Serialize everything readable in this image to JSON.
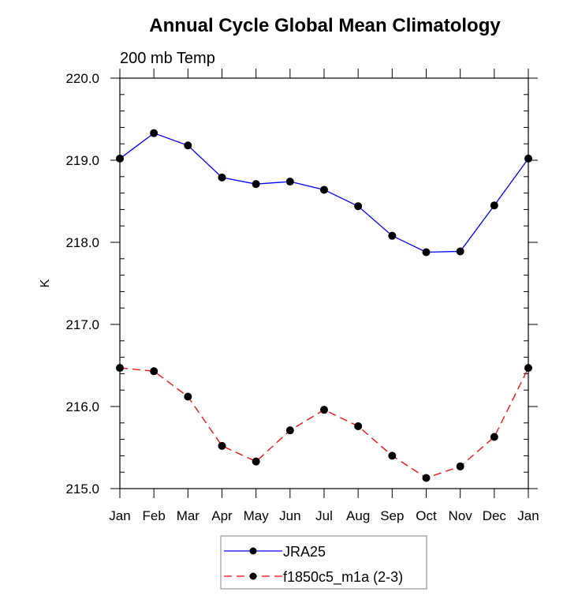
{
  "chart_data": {
    "type": "line",
    "title": "Annual Cycle Global Mean Climatology",
    "subtitle": "200 mb Temp",
    "xlabel": "",
    "ylabel": "K",
    "categories": [
      "Jan",
      "Feb",
      "Mar",
      "Apr",
      "May",
      "Jun",
      "Jul",
      "Aug",
      "Sep",
      "Oct",
      "Nov",
      "Dec",
      "Jan"
    ],
    "ylim": [
      215.0,
      220.0
    ],
    "yticks": [
      "215.0",
      "216.0",
      "217.0",
      "218.0",
      "219.0",
      "220.0"
    ],
    "ytick_values": [
      215,
      216,
      217,
      218,
      219,
      220
    ],
    "y_minor_step": 0.2,
    "grid": false,
    "legend_position": "bottom-center",
    "series": [
      {
        "name": "JRA25",
        "color": "#0000ff",
        "line_style": "solid",
        "marker": "filled-circle",
        "values": [
          219.02,
          219.33,
          219.18,
          218.79,
          218.71,
          218.74,
          218.64,
          218.44,
          218.08,
          217.88,
          217.89,
          218.45,
          219.02
        ]
      },
      {
        "name": "f1850c5_m1a (2-3)",
        "color": "#ff0000",
        "line_style": "dashed",
        "marker": "filled-circle",
        "values": [
          216.47,
          216.43,
          216.12,
          215.52,
          215.33,
          215.71,
          215.96,
          215.76,
          215.4,
          215.13,
          215.27,
          215.63,
          216.47
        ]
      }
    ]
  }
}
